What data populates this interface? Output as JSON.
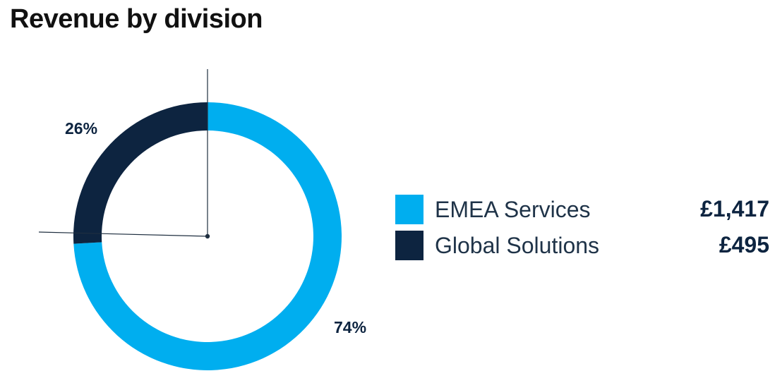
{
  "chart_data": {
    "type": "pie",
    "title": "Revenue by division",
    "categories": [
      "EMEA Services",
      "Global Solutions"
    ],
    "values": [
      1417,
      495
    ],
    "value_labels": [
      "£1,417",
      "£495"
    ],
    "percent_labels": [
      "74%",
      "26%"
    ],
    "percents": [
      74,
      26
    ],
    "colors": [
      "#00aeef",
      "#0d2440"
    ],
    "style": "donut",
    "legend_position": "right"
  }
}
